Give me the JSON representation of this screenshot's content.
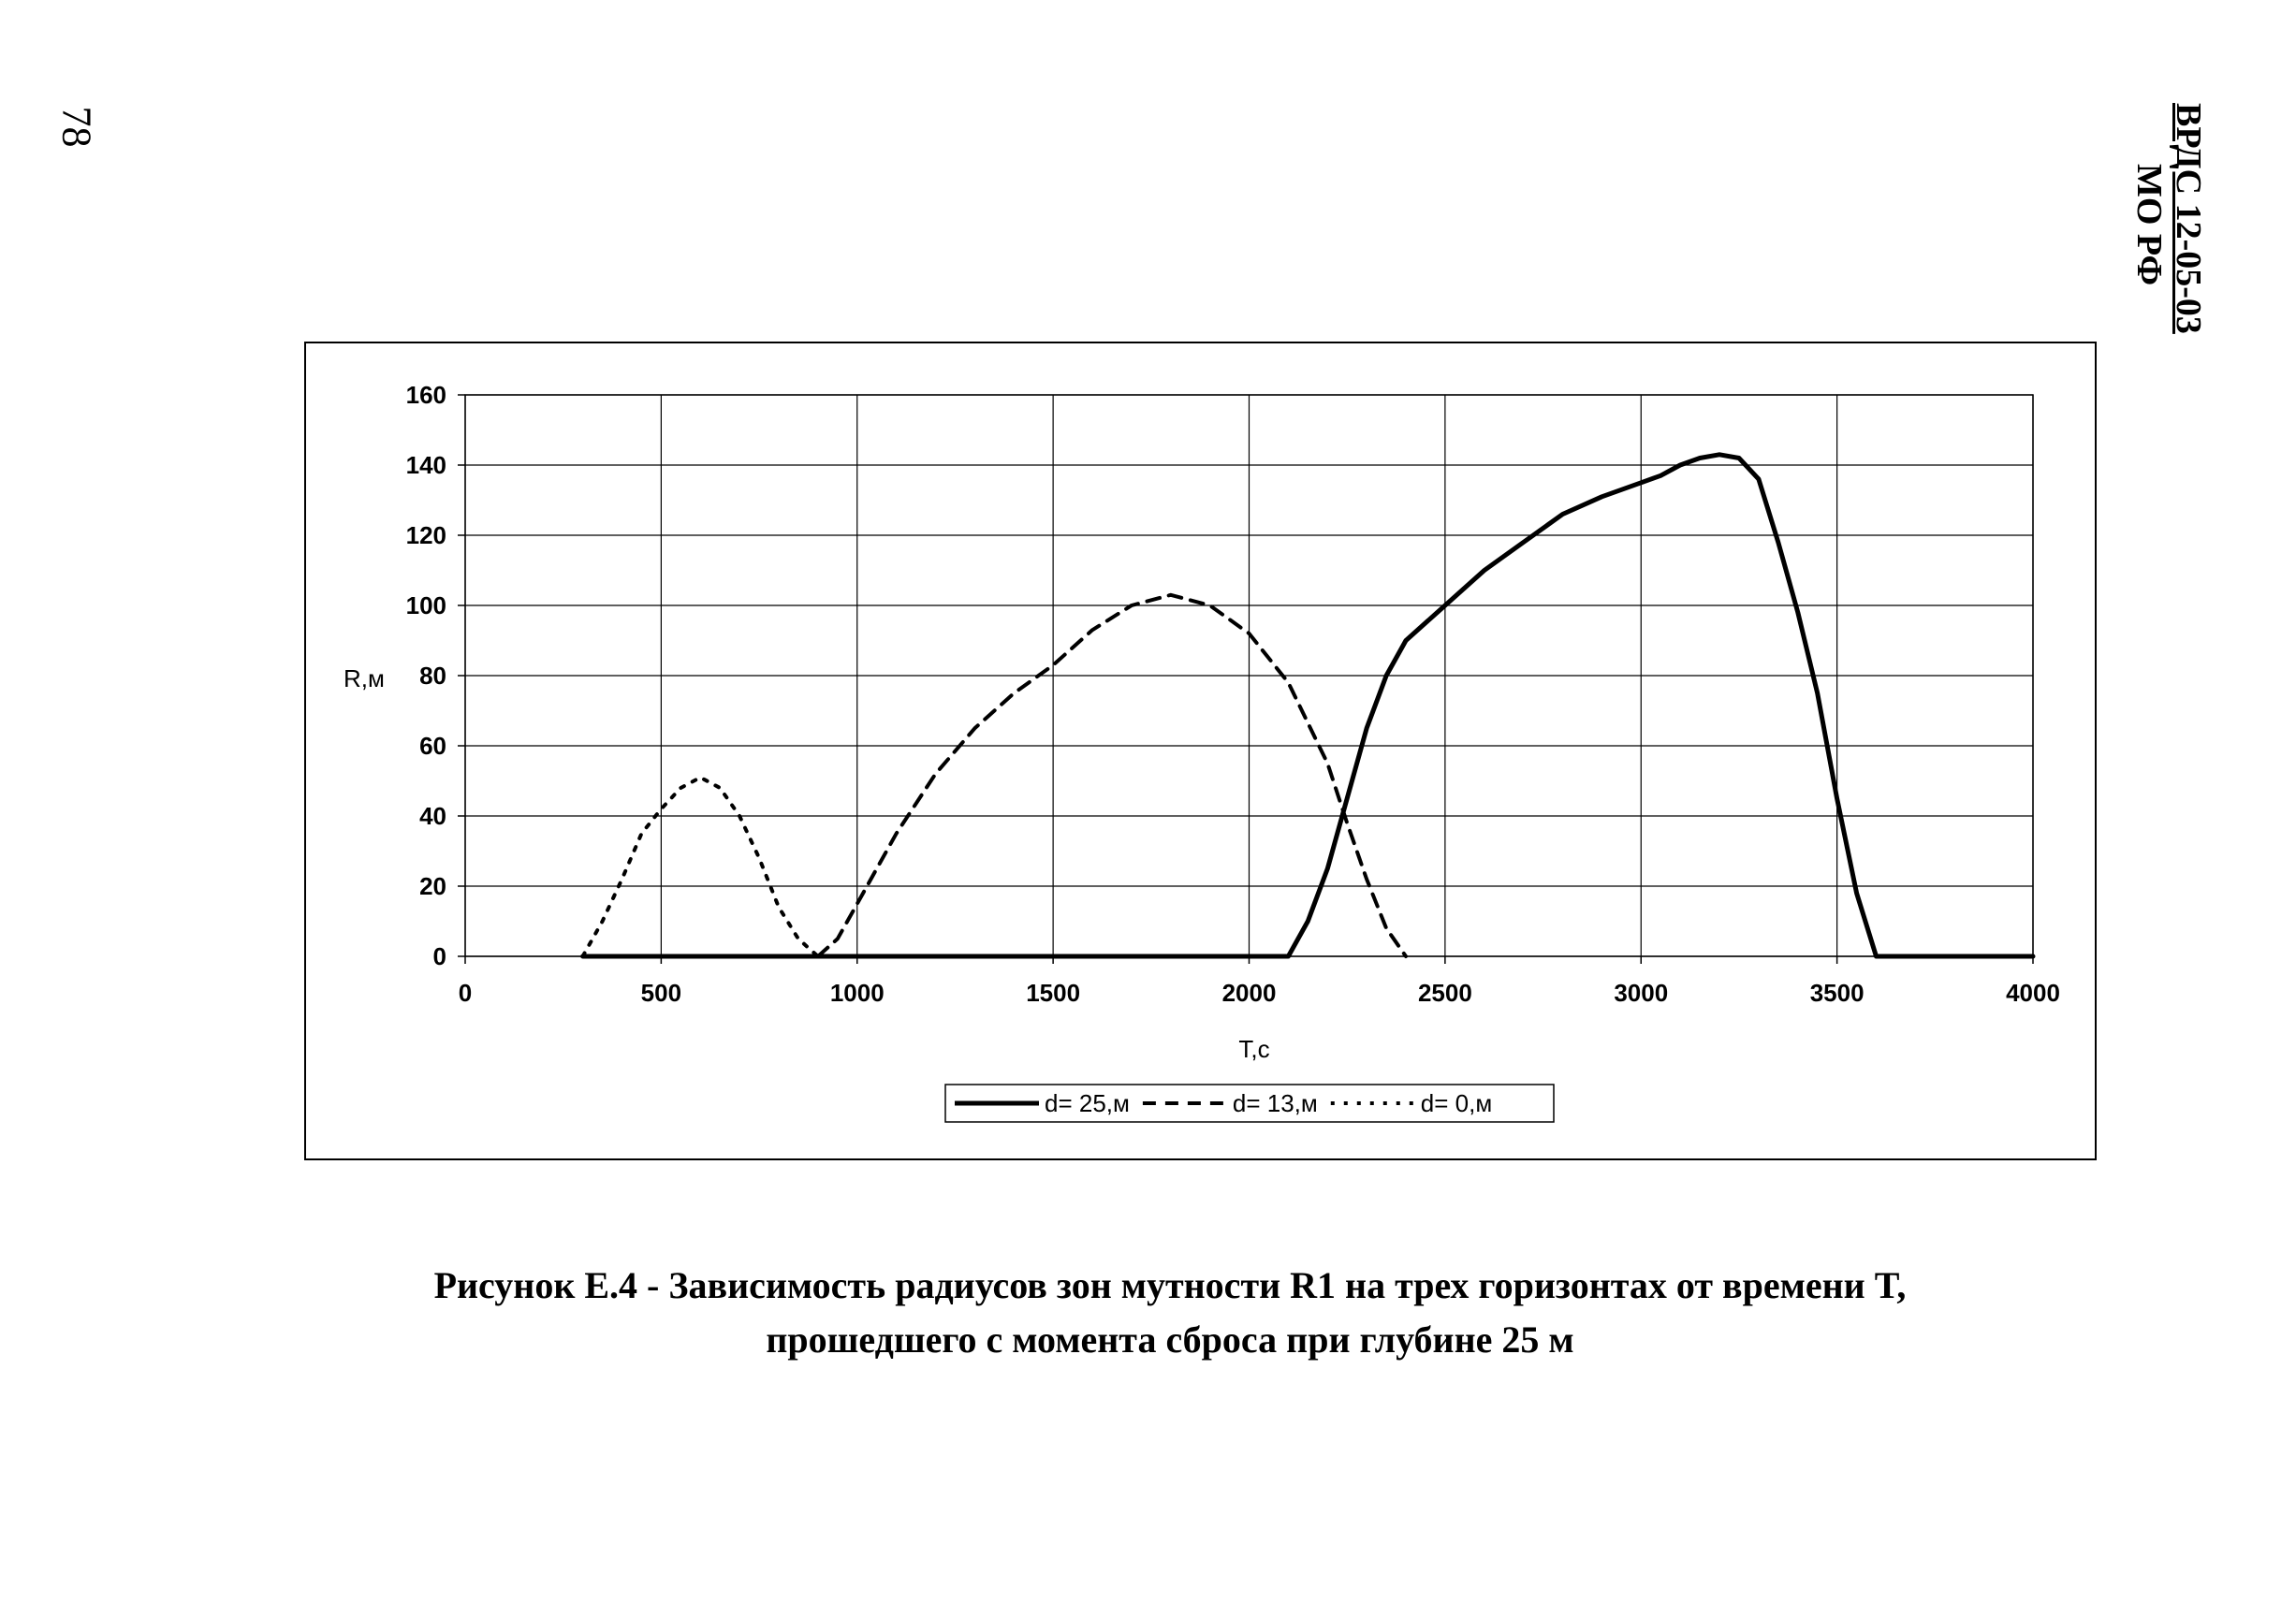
{
  "page_number": "78",
  "header": {
    "code": "ВРДС 12-05-03",
    "org": "МО РФ"
  },
  "caption": {
    "line1": "Рисунок Е.4 - Зависимость радиусов зон мутности R1 на трех горизонтах от времени T,",
    "line2": "прошедшего с момента сброса при глубине 25 м"
  },
  "chart_data": {
    "type": "line",
    "xlabel": "Т,с",
    "ylabel": "R,м",
    "xlim": [
      0,
      4000
    ],
    "ylim": [
      0,
      160
    ],
    "x_ticks": [
      0,
      500,
      1000,
      1500,
      2000,
      2500,
      3000,
      3500,
      4000
    ],
    "y_ticks": [
      0,
      20,
      40,
      60,
      80,
      100,
      120,
      140,
      160
    ],
    "grid": true,
    "legend_position": "bottom",
    "series": [
      {
        "name": "d= 25,м",
        "style": "solid",
        "color": "#000000",
        "points": [
          [
            300,
            0
          ],
          [
            2100,
            0
          ],
          [
            2150,
            10
          ],
          [
            2200,
            25
          ],
          [
            2250,
            45
          ],
          [
            2300,
            65
          ],
          [
            2350,
            80
          ],
          [
            2400,
            90
          ],
          [
            2500,
            100
          ],
          [
            2600,
            110
          ],
          [
            2700,
            118
          ],
          [
            2800,
            126
          ],
          [
            2900,
            131
          ],
          [
            3000,
            135
          ],
          [
            3050,
            137
          ],
          [
            3100,
            140
          ],
          [
            3150,
            142
          ],
          [
            3200,
            143
          ],
          [
            3250,
            142
          ],
          [
            3300,
            136
          ],
          [
            3350,
            118
          ],
          [
            3400,
            98
          ],
          [
            3450,
            75
          ],
          [
            3500,
            45
          ],
          [
            3550,
            18
          ],
          [
            3600,
            0
          ],
          [
            4000,
            0
          ]
        ]
      },
      {
        "name": "d= 13,м",
        "style": "dashed",
        "color": "#000000",
        "points": [
          [
            900,
            0
          ],
          [
            950,
            5
          ],
          [
            1000,
            15
          ],
          [
            1100,
            35
          ],
          [
            1200,
            52
          ],
          [
            1300,
            65
          ],
          [
            1400,
            75
          ],
          [
            1500,
            83
          ],
          [
            1600,
            93
          ],
          [
            1700,
            100
          ],
          [
            1800,
            103
          ],
          [
            1900,
            100
          ],
          [
            2000,
            92
          ],
          [
            2100,
            78
          ],
          [
            2200,
            55
          ],
          [
            2250,
            38
          ],
          [
            2300,
            22
          ],
          [
            2350,
            8
          ],
          [
            2400,
            0
          ]
        ]
      },
      {
        "name": "d= 0,м",
        "style": "dotted",
        "color": "#000000",
        "points": [
          [
            300,
            0
          ],
          [
            350,
            10
          ],
          [
            400,
            22
          ],
          [
            450,
            35
          ],
          [
            500,
            42
          ],
          [
            550,
            48
          ],
          [
            600,
            51
          ],
          [
            650,
            48
          ],
          [
            700,
            40
          ],
          [
            750,
            28
          ],
          [
            800,
            14
          ],
          [
            850,
            5
          ],
          [
            900,
            0
          ]
        ]
      }
    ]
  }
}
